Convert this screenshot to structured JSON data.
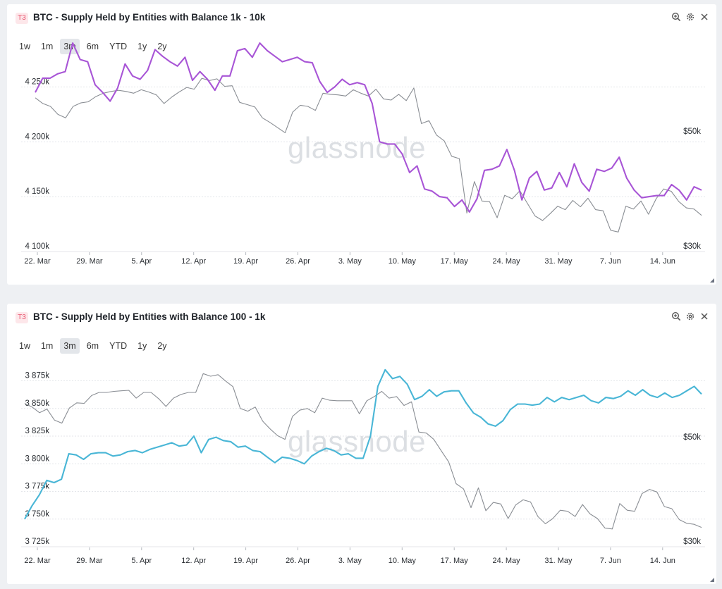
{
  "panels": [
    {
      "badge": "T3",
      "title": "BTC - Supply Held by Entities with Balance 1k - 10k",
      "range_buttons": [
        "1w",
        "1m",
        "3m",
        "6m",
        "YTD",
        "1y",
        "2y"
      ],
      "active_range": "3m",
      "watermark": "glassnode"
    },
    {
      "badge": "T3",
      "title": "BTC - Supply Held by Entities with Balance 100 - 1k",
      "range_buttons": [
        "1w",
        "1m",
        "3m",
        "6m",
        "YTD",
        "1y",
        "2y"
      ],
      "active_range": "3m",
      "watermark": "glassnode"
    }
  ],
  "chart_data": [
    {
      "type": "line",
      "title": "BTC - Supply Held by Entities with Balance 1k - 10k",
      "x_ticks": [
        "22. Mar",
        "29. Mar",
        "5. Apr",
        "12. Apr",
        "19. Apr",
        "26. Apr",
        "3. May",
        "10. May",
        "17. May",
        "24. May",
        "31. May",
        "7. Jun",
        "14. Jun"
      ],
      "y_left_ticks": [
        4100000,
        4150000,
        4200000,
        4250000
      ],
      "y_left_tick_labels": [
        "4 100k",
        "4 150k",
        "4 200k",
        "4 250k"
      ],
      "y_right_ticks": [
        30000,
        50000
      ],
      "y_right_tick_labels": [
        "$30k",
        "$50k"
      ],
      "ylim_left": [
        4100000,
        4283000
      ],
      "ylim_right": [
        30000,
        65000
      ],
      "grid": true,
      "series": [
        {
          "color": "#a855d6",
          "axis": "left",
          "values": [
            4245000,
            4258000,
            4258000,
            4262000,
            4264000,
            4290000,
            4275000,
            4273000,
            4252000,
            4245000,
            4237000,
            4249000,
            4271000,
            4260000,
            4257000,
            4265000,
            4284000,
            4278000,
            4273000,
            4269000,
            4277000,
            4256000,
            4264000,
            4257000,
            4247000,
            4260000,
            4260000,
            4283000,
            4285000,
            4277000,
            4290000,
            4283000,
            4278000,
            4273000,
            4275000,
            4277000,
            4273000,
            4272000,
            4255000,
            4245000,
            4250000,
            4257000,
            4252000,
            4254000,
            4252000,
            4235000,
            4200000,
            4198000,
            4198000,
            4189000,
            4172000,
            4178000,
            4157000,
            4155000,
            4150000,
            4149000,
            4141000,
            4147000,
            4136000,
            4148000,
            4174000,
            4175000,
            4178000,
            4193000,
            4174000,
            4147000,
            4167000,
            4173000,
            4156000,
            4158000,
            4172000,
            4159000,
            4180000,
            4163000,
            4155000,
            4175000,
            4173000,
            4176000,
            4186000,
            4167000,
            4156000,
            4149000,
            4150000,
            4151000,
            4151000,
            4161000,
            4156000,
            4147000,
            4159000,
            4156000
          ]
        },
        {
          "color": "#8a8e94",
          "axis": "right",
          "values": [
            56800,
            55800,
            55300,
            53900,
            53300,
            55300,
            55900,
            56100,
            57000,
            57600,
            57900,
            58100,
            57900,
            57600,
            58200,
            57800,
            57300,
            55800,
            56900,
            57800,
            58600,
            58300,
            60200,
            59800,
            60100,
            58800,
            58900,
            56000,
            55600,
            55200,
            53300,
            52500,
            51600,
            50700,
            54300,
            55500,
            55300,
            54600,
            57600,
            57400,
            57300,
            57100,
            58200,
            57600,
            57100,
            58300,
            56600,
            56400,
            57400,
            56300,
            58500,
            52300,
            52800,
            50300,
            49300,
            46600,
            46200,
            36700,
            42200,
            38800,
            38700,
            35900,
            39800,
            39200,
            40600,
            38400,
            36200,
            35400,
            36600,
            37900,
            37300,
            38900,
            37800,
            39300,
            37300,
            37100,
            33700,
            33400,
            37900,
            37400,
            38800,
            36500,
            39200,
            40900,
            40500,
            38700,
            37600,
            37400,
            36300
          ]
        }
      ]
    },
    {
      "type": "line",
      "title": "BTC - Supply Held by Entities with Balance 100 - 1k",
      "x_ticks": [
        "22. Mar",
        "29. Mar",
        "5. Apr",
        "12. Apr",
        "19. Apr",
        "26. Apr",
        "3. May",
        "10. May",
        "17. May",
        "24. May",
        "31. May",
        "7. Jun",
        "14. Jun"
      ],
      "y_left_ticks": [
        3725000,
        3750000,
        3775000,
        3800000,
        3825000,
        3850000,
        3875000
      ],
      "y_left_tick_labels": [
        "3 725k",
        "3 750k",
        "3 775k",
        "3 800k",
        "3 825k",
        "3 850k",
        "3 875k"
      ],
      "y_right_ticks": [
        30000,
        50000
      ],
      "y_right_tick_labels": [
        "$30k",
        "$50k"
      ],
      "ylim_left": [
        3725000,
        3890000
      ],
      "ylim_right": [
        30000,
        65000
      ],
      "grid": true,
      "series": [
        {
          "color": "#49b6d6",
          "axis": "left",
          "values": [
            3750000,
            3762000,
            3772000,
            3785000,
            3783000,
            3786000,
            3809000,
            3808000,
            3804000,
            3809000,
            3810000,
            3810000,
            3807000,
            3808000,
            3811000,
            3812000,
            3810000,
            3813000,
            3815000,
            3817000,
            3819000,
            3816000,
            3817000,
            3825000,
            3810000,
            3822000,
            3824000,
            3821000,
            3820000,
            3815000,
            3816000,
            3812000,
            3811000,
            3806000,
            3801000,
            3806000,
            3805000,
            3803000,
            3800000,
            3807000,
            3811000,
            3814000,
            3812000,
            3808000,
            3809000,
            3805000,
            3805000,
            3825000,
            3870000,
            3885000,
            3877000,
            3879000,
            3872000,
            3858000,
            3861000,
            3867000,
            3861000,
            3865000,
            3866000,
            3866000,
            3855000,
            3846000,
            3842000,
            3836000,
            3834000,
            3839000,
            3849000,
            3854000,
            3854000,
            3853000,
            3854000,
            3860000,
            3856000,
            3860000,
            3858000,
            3860000,
            3862000,
            3857000,
            3855000,
            3860000,
            3859000,
            3861000,
            3866000,
            3862000,
            3867000,
            3862000,
            3860000,
            3864000,
            3860000,
            3862000,
            3866000,
            3870000,
            3863000
          ]
        },
        {
          "color": "#8a8e94",
          "axis": "right",
          "values": [
            57500,
            56800,
            55700,
            56400,
            54300,
            53700,
            56600,
            57600,
            57500,
            59000,
            59600,
            59600,
            59800,
            59900,
            60000,
            58500,
            59600,
            59600,
            58400,
            56900,
            58500,
            59200,
            59600,
            59600,
            63200,
            62700,
            63000,
            61800,
            60700,
            56500,
            56000,
            56800,
            54100,
            52600,
            51300,
            50600,
            55000,
            56200,
            56500,
            55700,
            58500,
            58100,
            58000,
            58000,
            58000,
            55500,
            58000,
            58800,
            59800,
            58500,
            58800,
            57100,
            57800,
            52000,
            51800,
            50600,
            48400,
            46300,
            42100,
            41100,
            37500,
            41300,
            36900,
            38500,
            38200,
            35400,
            38000,
            39000,
            38600,
            35800,
            34400,
            35400,
            37000,
            36800,
            35800,
            38100,
            36300,
            35400,
            33600,
            33400,
            38300,
            37000,
            36800,
            40200,
            41000,
            40500,
            37700,
            37300,
            35200,
            34500,
            34300,
            33700
          ]
        }
      ]
    }
  ]
}
